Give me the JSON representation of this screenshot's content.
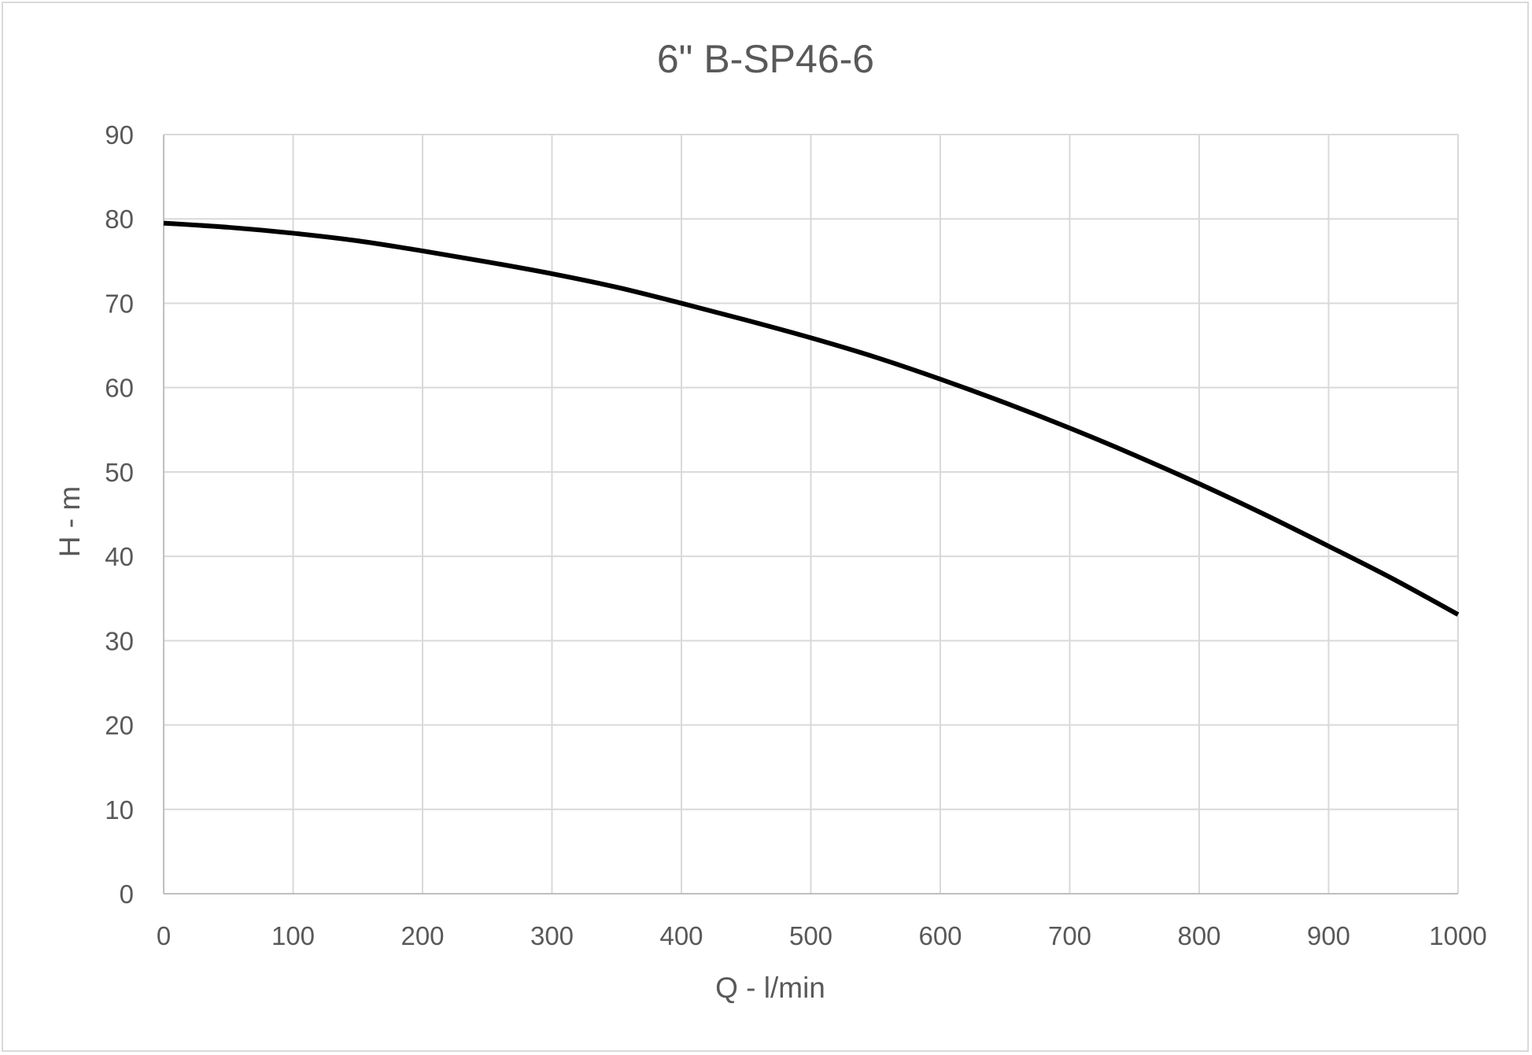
{
  "chart_data": {
    "type": "line",
    "title": "6\" B-SP46-6",
    "xlabel": "Q - l/min",
    "ylabel": "H - m",
    "xlim": [
      0,
      1000
    ],
    "ylim": [
      0,
      90
    ],
    "x_ticks": [
      0,
      100,
      200,
      300,
      400,
      500,
      600,
      700,
      800,
      900,
      1000
    ],
    "y_ticks": [
      0,
      10,
      20,
      30,
      40,
      50,
      60,
      70,
      80,
      90
    ],
    "x_tick_labels": [
      "0",
      "100",
      "200",
      "300",
      "400",
      "500",
      "600",
      "700",
      "800",
      "900",
      "1000"
    ],
    "y_tick_labels": [
      "0",
      "10",
      "20",
      "30",
      "40",
      "50",
      "60",
      "70",
      "80",
      "90"
    ],
    "grid": true,
    "legend": "none",
    "series": [
      {
        "color": "#000000",
        "x": [
          0,
          50,
          100,
          150,
          200,
          250,
          300,
          350,
          400,
          450,
          500,
          550,
          600,
          650,
          700,
          750,
          800,
          850,
          900,
          950,
          1000
        ],
        "y": [
          79.5,
          79.0,
          78.3,
          77.4,
          76.2,
          74.9,
          73.5,
          71.9,
          70.0,
          68.0,
          65.9,
          63.6,
          61.0,
          58.2,
          55.2,
          52.0,
          48.6,
          45.0,
          41.2,
          37.3,
          33.1
        ]
      }
    ]
  }
}
